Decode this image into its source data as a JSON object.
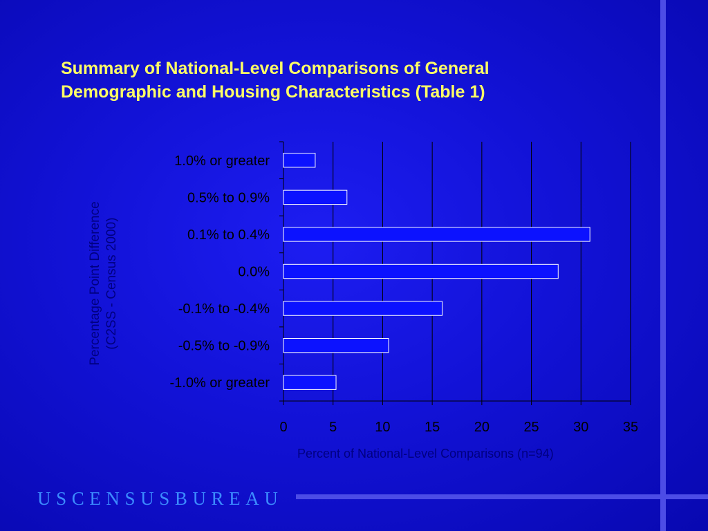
{
  "slide": {
    "title_line1": "Summary of National-Level Comparisons of General",
    "title_line2": "Demographic and Housing Characteristics (Table 1)",
    "logo_text": "USCENSUSBUREAU"
  },
  "colors": {
    "background": "#1212d6",
    "title": "#ffff66",
    "bar_fill": "#0c12ff",
    "bar_stroke": "#ffffff",
    "axis_text": "#000080",
    "tick_text": "#000000",
    "accent_line": "#4c4ce6",
    "logo": "#3c8cff"
  },
  "chart_data": {
    "type": "bar",
    "orientation": "horizontal",
    "categories": [
      "1.0% or greater",
      "0.5% to 0.9%",
      "0.1% to 0.4%",
      "0.0%",
      "-0.1% to -0.4%",
      "-0.5% to -0.9%",
      "-1.0% or greater"
    ],
    "values": [
      3.2,
      6.4,
      30.9,
      27.7,
      16.0,
      10.6,
      5.3
    ],
    "xlabel": "Percent of National-Level Comparisons (n=94)",
    "ylabel_line1": "Percentage Point Difference",
    "ylabel_line2": "(C2SS - Census 2000)",
    "xlim": [
      0,
      35
    ],
    "xticks": [
      0,
      5,
      10,
      15,
      20,
      25,
      30,
      35
    ],
    "grid": "vertical",
    "legend": "none"
  }
}
